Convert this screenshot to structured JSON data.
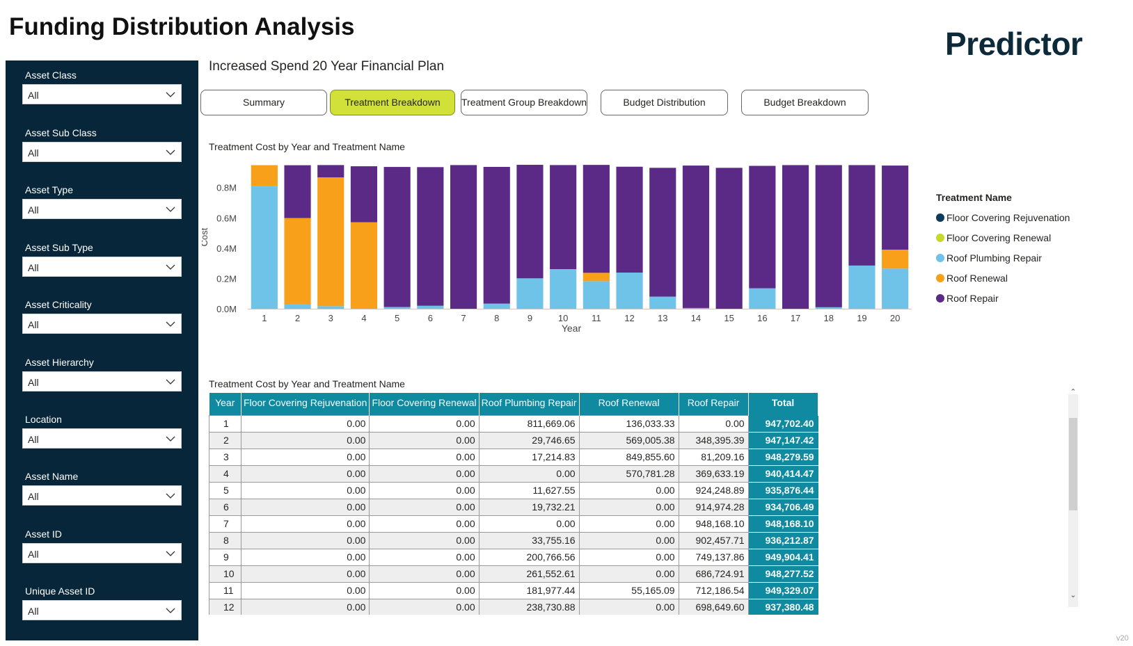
{
  "page_title": "Funding Distribution Analysis",
  "logo_text": "Predictor",
  "version": "v20",
  "subtitle": "Increased Spend 20 Year Financial Plan",
  "tabs": [
    {
      "label": "Summary",
      "active": false
    },
    {
      "label": "Treatment Breakdown",
      "active": true
    },
    {
      "label": "Treatment Group Breakdown",
      "active": false
    },
    {
      "label": "Budget Distribution",
      "active": false
    },
    {
      "label": "Budget Breakdown",
      "active": false
    }
  ],
  "filters": [
    {
      "label": "Asset Class",
      "value": "All"
    },
    {
      "label": "Asset Sub Class",
      "value": "All"
    },
    {
      "label": "Asset Type",
      "value": "All"
    },
    {
      "label": "Asset Sub Type",
      "value": "All"
    },
    {
      "label": "Asset Criticality",
      "value": "All"
    },
    {
      "label": "Asset Hierarchy",
      "value": "All"
    },
    {
      "label": "Location",
      "value": "All"
    },
    {
      "label": "Asset Name",
      "value": "All"
    },
    {
      "label": "Asset ID",
      "value": "All"
    },
    {
      "label": "Unique Asset ID",
      "value": "All"
    }
  ],
  "chart_title": "Treatment Cost by Year and Treatment Name",
  "legend_title": "Treatment Name",
  "chart_data": {
    "type": "bar",
    "stacked": true,
    "title": "Treatment Cost by Year and Treatment Name",
    "xlabel": "Year",
    "ylabel": "Cost",
    "ylim": [
      0,
      950000
    ],
    "yticks": [
      "0.0M",
      "0.2M",
      "0.4M",
      "0.6M",
      "0.8M"
    ],
    "ytick_values": [
      0,
      200000,
      400000,
      600000,
      800000
    ],
    "categories": [
      "1",
      "2",
      "3",
      "4",
      "5",
      "6",
      "7",
      "8",
      "9",
      "10",
      "11",
      "12",
      "13",
      "14",
      "15",
      "16",
      "17",
      "18",
      "19",
      "20"
    ],
    "series": [
      {
        "name": "Floor Covering Rejuvenation",
        "color": "#0d3b5c",
        "values": [
          0,
          0,
          0,
          0,
          0,
          0,
          0,
          0,
          0,
          0,
          0,
          0,
          0,
          0,
          0,
          0,
          0,
          0,
          0,
          0
        ]
      },
      {
        "name": "Floor Covering Renewal",
        "color": "#c5d92c",
        "values": [
          0,
          0,
          0,
          0,
          0,
          0,
          0,
          0,
          0,
          0,
          0,
          0,
          0,
          0,
          0,
          0,
          0,
          0,
          0,
          0
        ]
      },
      {
        "name": "Roof Plumbing Repair",
        "color": "#6fc3e8",
        "values": [
          811669.06,
          29746.65,
          17214.83,
          0,
          11627.55,
          19732.21,
          0,
          33755.16,
          200766.56,
          261552.61,
          181977.44,
          238730.88,
          80000,
          5000,
          0,
          135000,
          0,
          10000,
          285000,
          265000
        ]
      },
      {
        "name": "Roof Renewal",
        "color": "#f9a01b",
        "values": [
          136033.33,
          569005.38,
          849855.6,
          570781.28,
          0,
          0,
          0,
          0,
          0,
          0,
          55165.09,
          0,
          0,
          0,
          0,
          0,
          0,
          0,
          0,
          125000
        ]
      },
      {
        "name": "Roof Repair",
        "color": "#5b2a86",
        "values": [
          0,
          348395.39,
          81209.16,
          369633.19,
          924248.89,
          914974.28,
          948168.1,
          902457.71,
          749137.86,
          686724.91,
          712186.54,
          698649.6,
          850000,
          940000,
          930000,
          808000,
          948000,
          938000,
          663000,
          555000
        ]
      }
    ],
    "grid": false,
    "legend_position": "right"
  },
  "table": {
    "title": "Treatment Cost by Year and Treatment Name",
    "columns": [
      "Year",
      "Floor Covering Rejuvenation",
      "Floor Covering Renewal",
      "Roof Plumbing Repair",
      "Roof Renewal",
      "Roof Repair",
      "Total"
    ],
    "rows": [
      [
        "1",
        "0.00",
        "0.00",
        "811,669.06",
        "136,033.33",
        "0.00",
        "947,702.40"
      ],
      [
        "2",
        "0.00",
        "0.00",
        "29,746.65",
        "569,005.38",
        "348,395.39",
        "947,147.42"
      ],
      [
        "3",
        "0.00",
        "0.00",
        "17,214.83",
        "849,855.60",
        "81,209.16",
        "948,279.59"
      ],
      [
        "4",
        "0.00",
        "0.00",
        "0.00",
        "570,781.28",
        "369,633.19",
        "940,414.47"
      ],
      [
        "5",
        "0.00",
        "0.00",
        "11,627.55",
        "0.00",
        "924,248.89",
        "935,876.44"
      ],
      [
        "6",
        "0.00",
        "0.00",
        "19,732.21",
        "0.00",
        "914,974.28",
        "934,706.49"
      ],
      [
        "7",
        "0.00",
        "0.00",
        "0.00",
        "0.00",
        "948,168.10",
        "948,168.10"
      ],
      [
        "8",
        "0.00",
        "0.00",
        "33,755.16",
        "0.00",
        "902,457.71",
        "936,212.87"
      ],
      [
        "9",
        "0.00",
        "0.00",
        "200,766.56",
        "0.00",
        "749,137.86",
        "949,904.41"
      ],
      [
        "10",
        "0.00",
        "0.00",
        "261,552.61",
        "0.00",
        "686,724.91",
        "948,277.52"
      ],
      [
        "11",
        "0.00",
        "0.00",
        "181,977.44",
        "55,165.09",
        "712,186.54",
        "949,329.07"
      ],
      [
        "12",
        "0.00",
        "0.00",
        "238,730.88",
        "0.00",
        "698,649.60",
        "937,380.48"
      ]
    ]
  }
}
